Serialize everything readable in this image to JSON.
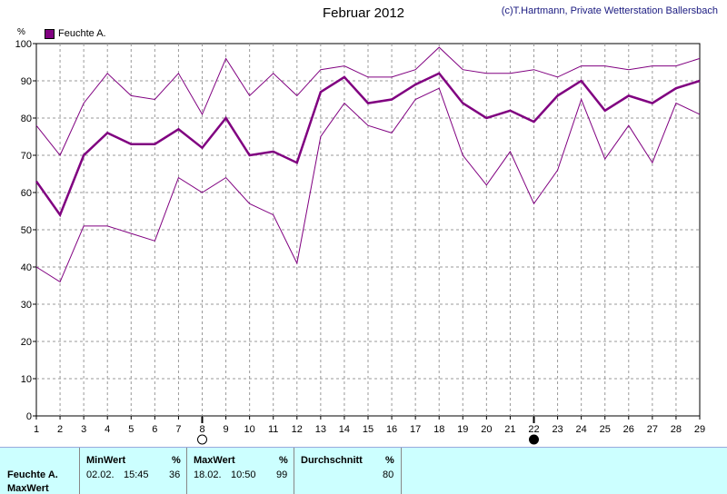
{
  "header": {
    "title": "Februar 2012",
    "copyright": "(c)T.Hartmann, Private Wetterstation Ballersbach"
  },
  "legend": {
    "label": "Feuchte A.",
    "color": "#800080"
  },
  "chart_data": {
    "type": "line",
    "title": "Februar 2012",
    "ylabel": "%",
    "xlabel": "",
    "ylim": [
      0,
      100
    ],
    "xlim": [
      1,
      29
    ],
    "grid": true,
    "legend_position": "top-left",
    "x": [
      1,
      2,
      3,
      4,
      5,
      6,
      7,
      8,
      9,
      10,
      11,
      12,
      13,
      14,
      15,
      16,
      17,
      18,
      19,
      20,
      21,
      22,
      23,
      24,
      25,
      26,
      27,
      28,
      29
    ],
    "yticks": [
      0,
      10,
      20,
      30,
      40,
      50,
      60,
      70,
      80,
      90,
      100
    ],
    "series": [
      {
        "name": "Feuchte A.",
        "role": "average",
        "color": "#800080",
        "values": [
          63,
          54,
          70,
          76,
          73,
          73,
          77,
          72,
          80,
          70,
          71,
          68,
          87,
          91,
          84,
          85,
          89,
          92,
          84,
          80,
          82,
          79,
          86,
          90,
          82,
          86,
          84,
          88,
          90
        ]
      },
      {
        "name": "",
        "role": "max",
        "color": "#800080",
        "values": [
          78,
          70,
          84,
          92,
          86,
          85,
          92,
          81,
          96,
          86,
          92,
          86,
          93,
          94,
          91,
          91,
          93,
          99,
          93,
          92,
          92,
          93,
          91,
          94,
          94,
          93,
          94,
          94,
          96
        ]
      },
      {
        "name": "",
        "role": "min",
        "color": "#800080",
        "values": [
          40,
          36,
          51,
          51,
          49,
          47,
          64,
          60,
          64,
          57,
          54,
          41,
          75,
          84,
          78,
          76,
          85,
          88,
          70,
          62,
          71,
          57,
          66,
          85,
          69,
          78,
          68,
          84,
          81
        ]
      }
    ],
    "markers": [
      {
        "x": 8,
        "symbol": "open-circle"
      },
      {
        "x": 22,
        "symbol": "filled-circle"
      }
    ]
  },
  "panel": {
    "row_label_1": "Feuchte A.",
    "row_label_2": "MaxWert",
    "minwert": {
      "header": "MinWert",
      "unit": "%",
      "date": "02.02.",
      "time": "15:45",
      "value": "36"
    },
    "maxwert": {
      "header": "MaxWert",
      "unit": "%",
      "date": "18.02.",
      "time": "10:50",
      "value": "99"
    },
    "durchschnitt": {
      "header": "Durchschnitt",
      "unit": "%",
      "value": "80"
    },
    "bg_color": "#ccffff"
  }
}
